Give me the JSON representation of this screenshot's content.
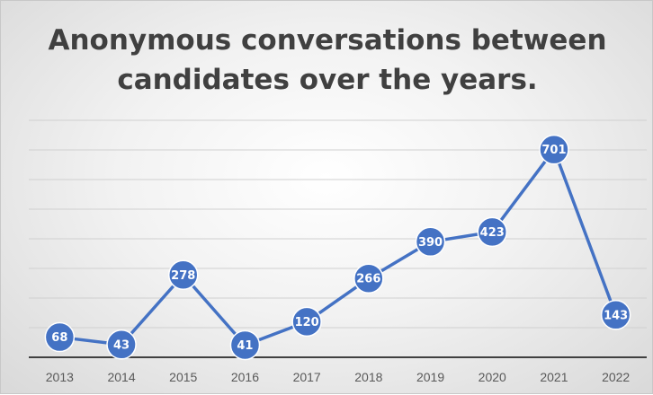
{
  "chart_data": {
    "type": "line",
    "title_lines": [
      "Anonymous conversations between",
      "candidates over the years."
    ],
    "x": [
      "2013",
      "2014",
      "2015",
      "2016",
      "2017",
      "2018",
      "2019",
      "2020",
      "2021",
      "2022"
    ],
    "series": [
      {
        "values": [
          68,
          43,
          278,
          41,
          120,
          266,
          390,
          423,
          701,
          143
        ]
      }
    ],
    "ylim": [
      0,
      800
    ],
    "y_gridlines": true,
    "y_axis_labels_shown": false,
    "legend": "none",
    "colors": {
      "line": "#4472C4",
      "marker_fill": "#4472C4",
      "marker_stroke": "#ffffff",
      "gridline": "#d0d0d0",
      "axis": "#404040"
    }
  }
}
